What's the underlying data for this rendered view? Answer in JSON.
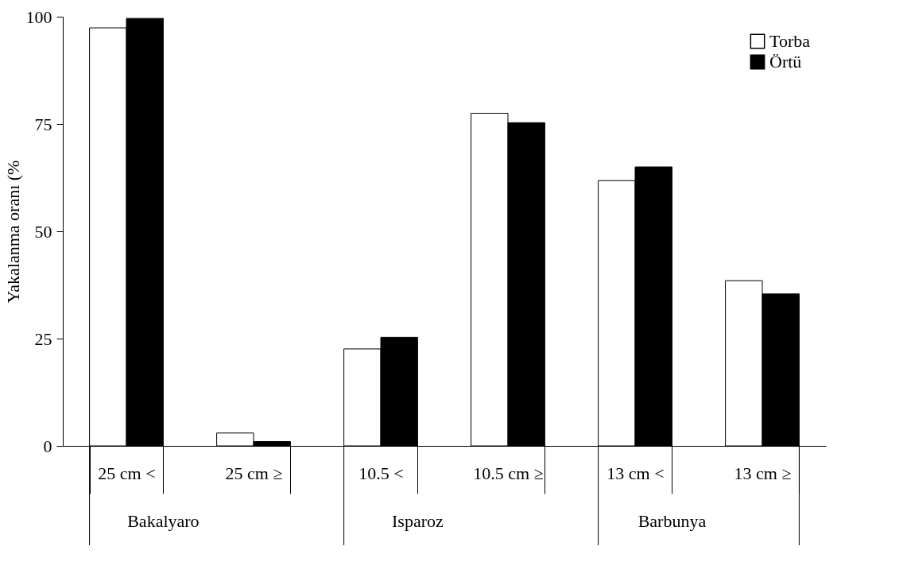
{
  "chart_data": {
    "type": "bar",
    "ylabel": "Yakalanma oranı (%",
    "categories": [
      "25 cm <",
      "25 cm ≥",
      "10.5 <",
      "10.5 cm ≥",
      "13 cm <",
      "13 cm ≥"
    ],
    "series": [
      {
        "name": "Torba",
        "color": "#ffffff",
        "values": [
          97.4,
          3.0,
          22.6,
          77.5,
          61.8,
          38.5
        ]
      },
      {
        "name": "Örtü",
        "color": "#000000",
        "values": [
          99.6,
          1.0,
          25.3,
          75.3,
          65.0,
          35.4
        ]
      }
    ],
    "annotations": [
      "Bakalyaro",
      "Isparoz",
      "Barbunya"
    ],
    "ylim": [
      0,
      100
    ],
    "yticks": [
      0,
      25,
      50,
      75,
      100
    ],
    "grid": false,
    "legend": "top right"
  }
}
